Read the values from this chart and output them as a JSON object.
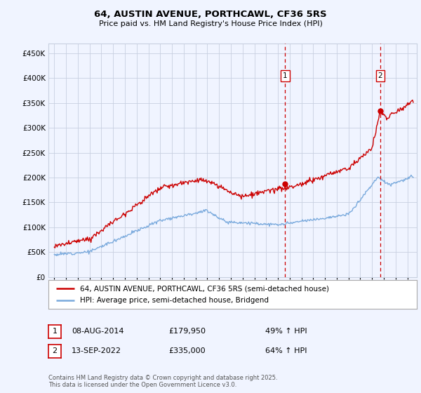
{
  "title": "64, AUSTIN AVENUE, PORTHCAWL, CF36 5RS",
  "subtitle": "Price paid vs. HM Land Registry's House Price Index (HPI)",
  "bg_color": "#f0f4ff",
  "plot_bg_color": "#f0f4ff",
  "grid_color": "#c8d0e0",
  "red_color": "#cc0000",
  "blue_color": "#7aaadd",
  "legend_label_red": "64, AUSTIN AVENUE, PORTHCAWL, CF36 5RS (semi-detached house)",
  "legend_label_blue": "HPI: Average price, semi-detached house, Bridgend",
  "sale1_date": 2014.6,
  "sale1_price": 179950,
  "sale1_text": "08-AUG-2014",
  "sale1_pct": "49% ↑ HPI",
  "sale2_date": 2022.7,
  "sale2_price": 335000,
  "sale2_text": "13-SEP-2022",
  "sale2_pct": "64% ↑ HPI",
  "footer": "Contains HM Land Registry data © Crown copyright and database right 2025.\nThis data is licensed under the Open Government Licence v3.0.",
  "xmin": 1994.5,
  "xmax": 2025.8,
  "ymin": 0,
  "ymax": 470000
}
